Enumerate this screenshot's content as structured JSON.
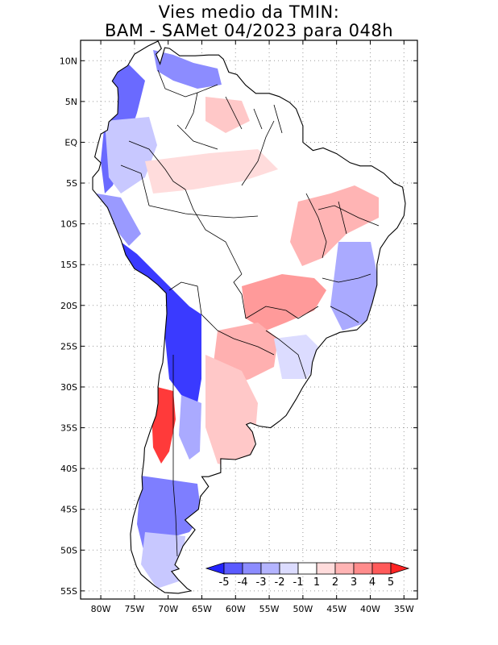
{
  "title": {
    "line1": "Vies medio da TMIN:",
    "line2": "BAM - SAMet 04/2023  para 048h"
  },
  "map": {
    "lat_labels": [
      "10N",
      "5N",
      "EQ",
      "5S",
      "10S",
      "15S",
      "20S",
      "25S",
      "30S",
      "35S",
      "40S",
      "45S",
      "50S",
      "55S"
    ],
    "lon_labels": [
      "80W",
      "75W",
      "70W",
      "65W",
      "60W",
      "55W",
      "50W",
      "45W",
      "40W",
      "35W"
    ],
    "lon_range": [
      -83,
      -33
    ],
    "lat_range": [
      12.5,
      -56
    ]
  },
  "colorbar": {
    "labels": [
      "-5",
      "-4",
      "-3",
      "-2",
      "-1",
      "1",
      "2",
      "3",
      "4",
      "5"
    ],
    "colors": [
      "#2323ff",
      "#5a5aff",
      "#8c8cff",
      "#b4b4ff",
      "#dcdcff",
      "#ffffff",
      "#ffdcdc",
      "#ffb4b4",
      "#ff8c8c",
      "#ff5a5a",
      "#ff2323"
    ]
  }
}
